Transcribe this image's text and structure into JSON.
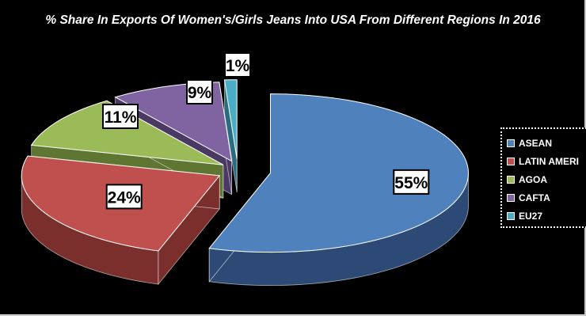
{
  "chart_data": {
    "type": "pie",
    "title": "% Share In Exports Of Women's/Girls Jeans Into USA From Different Regions In 2016",
    "categories": [
      "ASEAN",
      "LATIN AMERI",
      "AGOA",
      "CAFTA",
      "EU27"
    ],
    "values": [
      55,
      24,
      11,
      9,
      1
    ],
    "data_labels": [
      "55%",
      "24%",
      "11%",
      "9%",
      "1%"
    ],
    "colors": [
      "#4f81bd",
      "#c0504d",
      "#9bbb59",
      "#8064a2",
      "#4bacc6"
    ],
    "side_colors": [
      "#2c4a75",
      "#7a2f2d",
      "#5f7633",
      "#4a3a63",
      "#2b6d80"
    ],
    "legend_position": "right",
    "exploded": true,
    "style": "3d"
  }
}
